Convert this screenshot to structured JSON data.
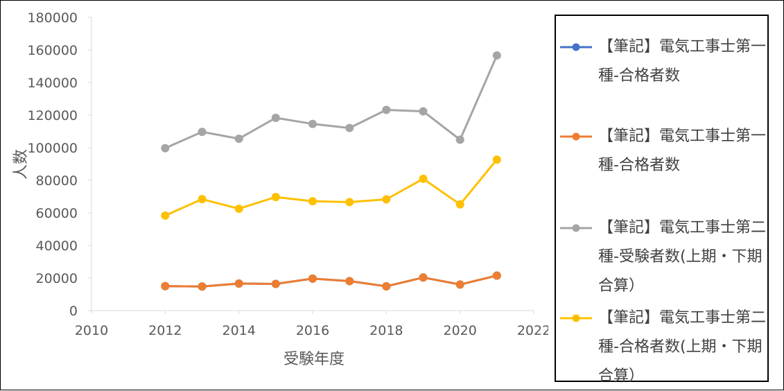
{
  "chart_data": {
    "type": "line",
    "xlabel": "受験年度",
    "ylabel": "人数",
    "xlim": [
      2010,
      2022
    ],
    "ylim": [
      0,
      180000
    ],
    "x_ticks": [
      "2010",
      "2012",
      "2014",
      "2016",
      "2018",
      "2020",
      "2022"
    ],
    "y_ticks": [
      "0",
      "20000",
      "40000",
      "60000",
      "80000",
      "100000",
      "120000",
      "140000",
      "160000",
      "180000"
    ],
    "grid": false,
    "legend_position": "right",
    "series": [
      {
        "name": "【筆記】電気工事士第一種-合格者数",
        "color": "#4472c4",
        "x": [
          2012,
          2013,
          2014,
          2015,
          2016,
          2017,
          2018,
          2019,
          2020,
          2021
        ],
        "values": [
          15000,
          14800,
          16600,
          16400,
          19600,
          18100,
          14900,
          20300,
          16000,
          21500
        ]
      },
      {
        "name": "【筆記】電気工事士第一種-合格者数",
        "color": "#ed7d31",
        "x": [
          2012,
          2013,
          2014,
          2015,
          2016,
          2017,
          2018,
          2019,
          2020,
          2021
        ],
        "values": [
          15000,
          14800,
          16600,
          16400,
          19600,
          18100,
          14900,
          20300,
          16000,
          21500
        ]
      },
      {
        "name": "【筆記】電気工事士第二種-受験者数(上期・下期合算）",
        "color": "#a5a5a5",
        "x": [
          2012,
          2013,
          2014,
          2015,
          2016,
          2017,
          2018,
          2019,
          2020,
          2021
        ],
        "values": [
          99700,
          109700,
          105500,
          118300,
          114600,
          112100,
          123200,
          122300,
          104900,
          156600
        ]
      },
      {
        "name": "【筆記】電気工事士第二種-合格者数(上期・下期合算）",
        "color": "#ffc000",
        "x": [
          2012,
          2013,
          2014,
          2015,
          2016,
          2017,
          2018,
          2019,
          2020,
          2021
        ],
        "values": [
          58300,
          68400,
          62500,
          69700,
          67100,
          66600,
          68300,
          80900,
          65200,
          92700
        ]
      }
    ]
  }
}
